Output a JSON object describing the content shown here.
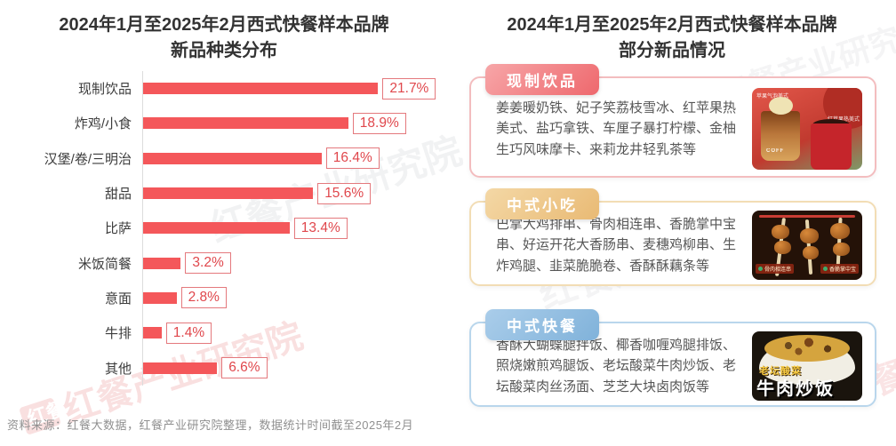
{
  "watermark": {
    "text": "红餐产业研究院",
    "logo_text": "红餐"
  },
  "left_panel": {
    "title_line1": "2024年1月至2025年2月西式快餐样本品牌",
    "title_line2": "新品种类分布"
  },
  "chart_data": {
    "type": "bar",
    "orientation": "horizontal",
    "title": "2024年1月至2025年2月西式快餐样本品牌新品种类分布",
    "categories": [
      "现制饮品",
      "炸鸡/小食",
      "汉堡/卷/三明治",
      "甜品",
      "比萨",
      "米饭简餐",
      "意面",
      "牛排",
      "其他"
    ],
    "values": [
      21.7,
      18.9,
      16.4,
      15.6,
      13.4,
      3.2,
      2.8,
      1.4,
      6.6
    ],
    "value_labels": [
      "21.7%",
      "18.9%",
      "16.4%",
      "15.6%",
      "13.4%",
      "3.2%",
      "2.8%",
      "1.4%",
      "6.6%"
    ],
    "unit": "%",
    "xlim": [
      0,
      24
    ],
    "grid": false,
    "bar_color": "#f4575a",
    "value_box_border": "#e4797d",
    "value_text_color": "#e0474c"
  },
  "right_panel": {
    "title_line1": "2024年1月至2025年2月西式快餐样本品牌",
    "title_line2": "部分新品情况",
    "cards": [
      {
        "label": "现制饮品",
        "text": "姜姜暖奶铁、妃子笑荔枝雪冰、红苹果热美式、盐巧拿铁、车厘子暴打柠檬、金柚生巧风味摩卡、来莉龙井轻乳茶等",
        "accent_from": "#f7a6a8",
        "accent_to": "#ee686d",
        "border": "#f3bdbf",
        "image_labels": {
          "top_left": "苹果气泡美式",
          "right": "红苹果热美式",
          "cup": "COFF"
        }
      },
      {
        "label": "中式小吃",
        "text": "巴掌大鸡排串、骨肉相连串、香脆掌中宝串、好运开花大香肠串、麦穗鸡柳串、生炸鸡腿、韭菜脆脆卷、香酥酥藕条等",
        "accent_from": "#f4d8a6",
        "accent_to": "#e9ba74",
        "border": "#f2ddb5",
        "image_labels": {
          "tag_left": "骨肉相连串",
          "tag_right": "香脆掌中宝"
        }
      },
      {
        "label": "中式快餐",
        "text": "香酥大蝴蝶腿拌饭、椰香咖喱鸡腿排饭、照烧嫩煎鸡腿饭、老坛酸菜牛肉炒饭、老坛酸菜肉丝汤面、芝芝大块卤肉饭等",
        "accent_from": "#aacdea",
        "accent_to": "#80b2da",
        "border": "#b9d6ec",
        "image_labels": {
          "top": "老坛酸菜",
          "bottom": "牛肉炒饭"
        }
      }
    ]
  },
  "footer": {
    "source_text": "资料来源：红餐大数据，红餐产业研究院整理，数据统计时间截至2025年2月"
  }
}
